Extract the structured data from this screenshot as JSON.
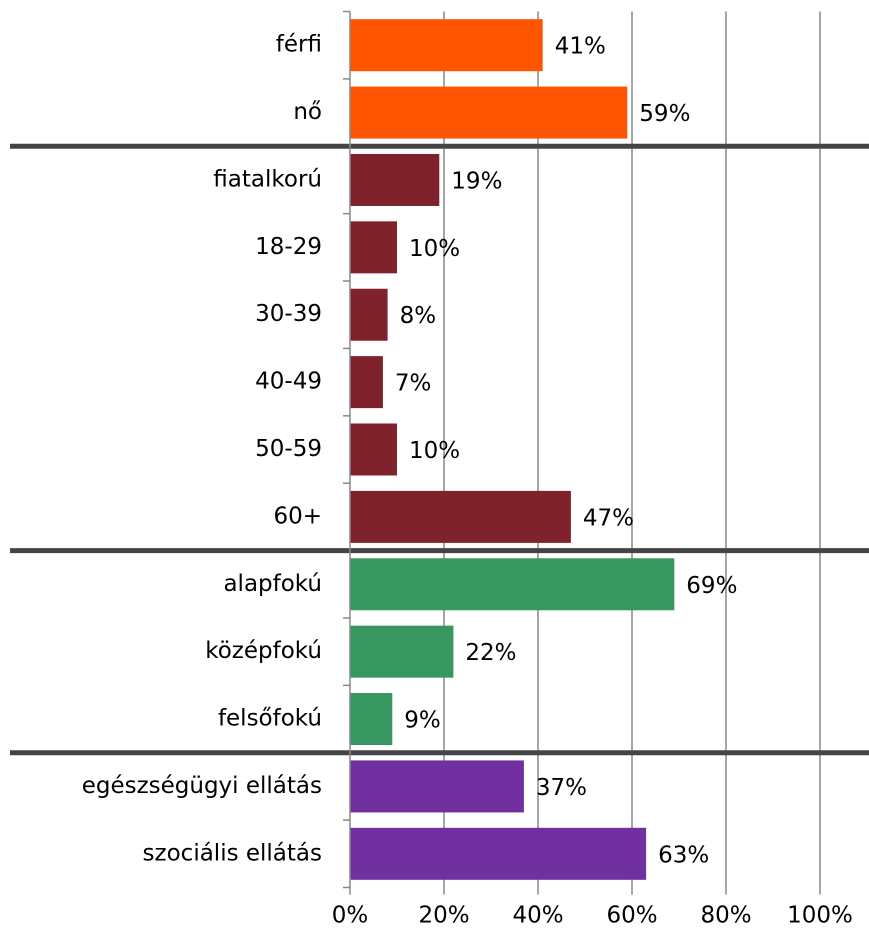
{
  "chart_data": {
    "type": "bar",
    "orientation": "horizontal",
    "categories": [
      "férfi",
      "nő",
      "fiatalkorú",
      "18-29",
      "30-39",
      "40-49",
      "50-59",
      "60+",
      "alapfokú",
      "középfokú",
      "felsőfokú",
      "egészségügyi ellátás",
      "szociális ellátás"
    ],
    "values": [
      41,
      59,
      19,
      10,
      8,
      7,
      10,
      47,
      69,
      22,
      9,
      37,
      63
    ],
    "value_labels": [
      "41%",
      "59%",
      "19%",
      "10%",
      "8%",
      "7%",
      "10%",
      "47%",
      "69%",
      "22%",
      "9%",
      "37%",
      "63%"
    ],
    "colors": [
      "#ff5500",
      "#ff5500",
      "#7f222c",
      "#7f222c",
      "#7f222c",
      "#7f222c",
      "#7f222c",
      "#7f222c",
      "#389660",
      "#389660",
      "#389660",
      "#7030a0",
      "#7030a0"
    ],
    "xlim": [
      0,
      100
    ],
    "xticks": [
      {
        "value": 0,
        "label": "0%"
      },
      {
        "value": 20,
        "label": "20%"
      },
      {
        "value": 40,
        "label": "40%"
      },
      {
        "value": 60,
        "label": "60%"
      },
      {
        "value": 80,
        "label": "80%"
      },
      {
        "value": 100,
        "label": "100%"
      }
    ],
    "grid": true
  }
}
